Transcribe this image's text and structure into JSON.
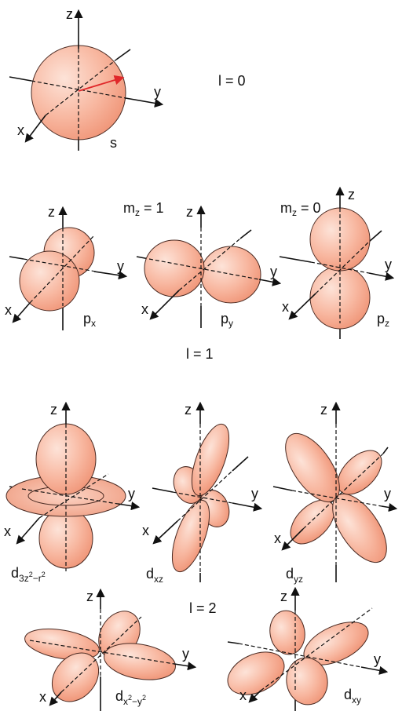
{
  "axes": {
    "x": "x",
    "y": "y",
    "z": "z"
  },
  "groups": {
    "l0": "l = 0",
    "l1": "l = 1",
    "l2": "l = 2"
  },
  "mz": {
    "prefix": "m",
    "sub": "z",
    "one": " = 1",
    "zero": " = 0"
  },
  "orbitals": {
    "s": "s",
    "p": "p",
    "px_sub": "x",
    "py_sub": "y",
    "pz_sub": "z",
    "d": "d",
    "dz2_sub_a": "3z",
    "dz2_sup_a": "2",
    "dz2_sub_b": "−r",
    "dz2_sup_b": "2",
    "dxz_sub": "xz",
    "dyz_sub": "yz",
    "dx2y2_sub_a": "x",
    "dx2y2_sup_a": "2",
    "dx2y2_sub_b": "−y",
    "dx2y2_sup_b": "2",
    "dxy_sub": "xy"
  },
  "colors": {
    "lobe_light": "#fbd0bf",
    "lobe_dark": "#f19577",
    "vector": "#e0282a"
  }
}
